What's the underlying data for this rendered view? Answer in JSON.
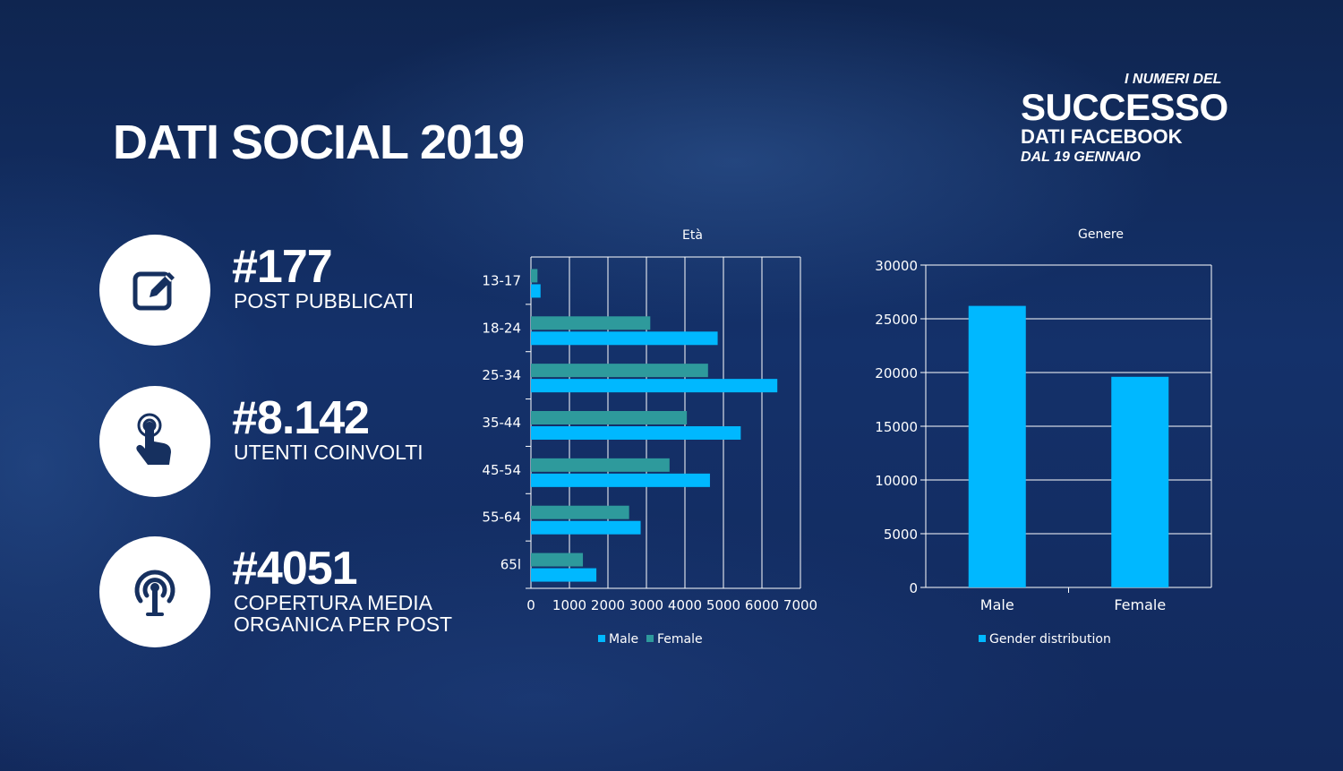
{
  "title": "DATI SOCIAL 2019",
  "brand": {
    "pre": "I NUMERI DEL",
    "big": "SUCCESSO",
    "mid": "DATI FACEBOOK",
    "small": "DAL 19 GENNAIO"
  },
  "stats": [
    {
      "value": "#177",
      "label": "POST PUBBLICATI",
      "icon": "edit-icon"
    },
    {
      "value": "#8.142",
      "label": "UTENTI COINVOLTI",
      "icon": "tap-hand-icon"
    },
    {
      "value": "#4051",
      "label": "COPERTURA MEDIA\nORGANICA PER POST",
      "icon": "broadcast-icon"
    }
  ],
  "colors": {
    "male": "#00b8ff",
    "female": "#2e9a9c",
    "gender": "#00b8ff"
  },
  "chart_data": [
    {
      "type": "bar",
      "orientation": "horizontal",
      "title": "Età",
      "categories": [
        "13-17",
        "18-24",
        "25-34",
        "35-44",
        "45-54",
        "55-64",
        "65l"
      ],
      "series": [
        {
          "name": "Male",
          "values": [
            250,
            4850,
            6400,
            5450,
            4650,
            2850,
            1700
          ]
        },
        {
          "name": "Female",
          "values": [
            170,
            3100,
            4600,
            4050,
            3600,
            2550,
            1350
          ]
        }
      ],
      "xlim": [
        0,
        7000
      ],
      "xticks": [
        0,
        1000,
        2000,
        3000,
        4000,
        5000,
        6000,
        7000
      ],
      "grid": true,
      "legend": "bottom"
    },
    {
      "type": "bar",
      "title": "Genere",
      "categories": [
        "Male",
        "Female"
      ],
      "series": [
        {
          "name": "Gender distribution",
          "values": [
            26200,
            19600
          ]
        }
      ],
      "ylim": [
        0,
        30000
      ],
      "yticks": [
        0,
        5000,
        10000,
        15000,
        20000,
        25000,
        30000
      ],
      "grid": true,
      "legend": "bottom"
    }
  ]
}
